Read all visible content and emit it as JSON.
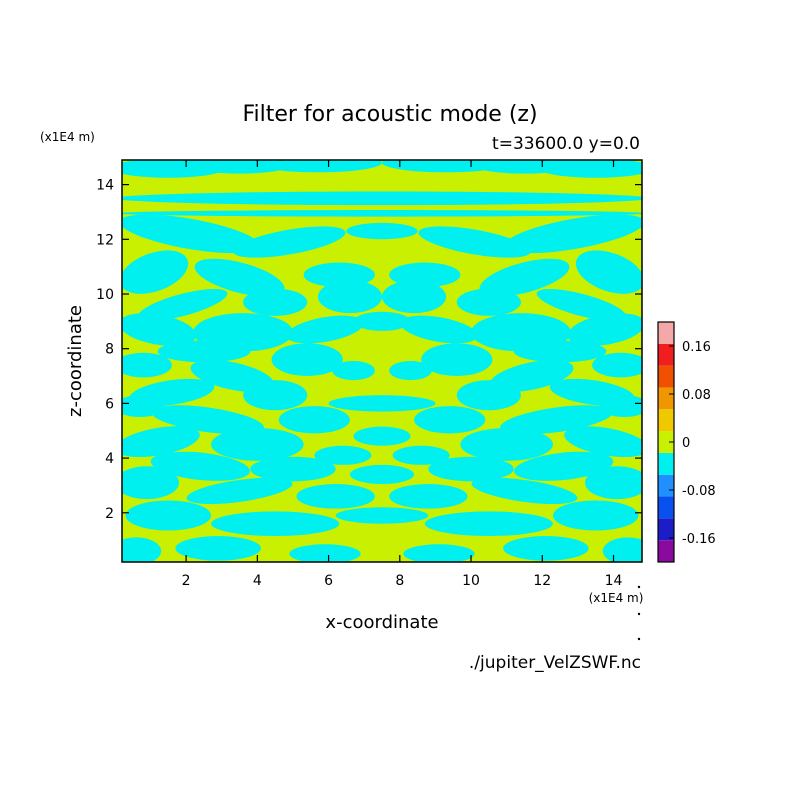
{
  "chart_data": {
    "type": "heatmap",
    "title": "Filter for acoustic mode (z)",
    "subtitle": "t=33600.0 y=0.0",
    "xlabel": "x-coordinate",
    "ylabel": "z-coordinate",
    "x_unit": "(x1E4 m)",
    "y_unit": "(x1E4 m)",
    "xlim": [
      0.2,
      14.8
    ],
    "ylim": [
      0.2,
      14.9
    ],
    "x_ticks": [
      "2",
      "4",
      "6",
      "8",
      "10",
      "12",
      "14"
    ],
    "y_ticks": [
      "2",
      "4",
      "6",
      "8",
      "10",
      "12",
      "14"
    ],
    "x_tick_values": [
      2,
      4,
      6,
      8,
      10,
      12,
      14
    ],
    "y_tick_values": [
      2,
      4,
      6,
      8,
      10,
      12,
      14
    ],
    "symmetric_about_x": 7.5,
    "colorbar": {
      "levels": [
        -0.2,
        -0.16,
        -0.12,
        -0.08,
        -0.04,
        0,
        0.04,
        0.08,
        0.12,
        0.16,
        0.2
      ],
      "colors": [
        "#8a0aa0",
        "#1d1dc8",
        "#0a50f0",
        "#1e90ff",
        "#00f0f0",
        "#c8f000",
        "#f0c800",
        "#f09600",
        "#f05000",
        "#f01e1e",
        "#f4a8a8"
      ],
      "tick_labels": [
        "0.16",
        "0.08",
        "0",
        "-0.08",
        "-0.16"
      ],
      "tick_values": [
        0.16,
        0.08,
        0,
        -0.08,
        -0.16
      ]
    },
    "field_values_present": [
      -0.04,
      0.04
    ],
    "source_label": "./jupiter_VelZSWF.nc"
  }
}
